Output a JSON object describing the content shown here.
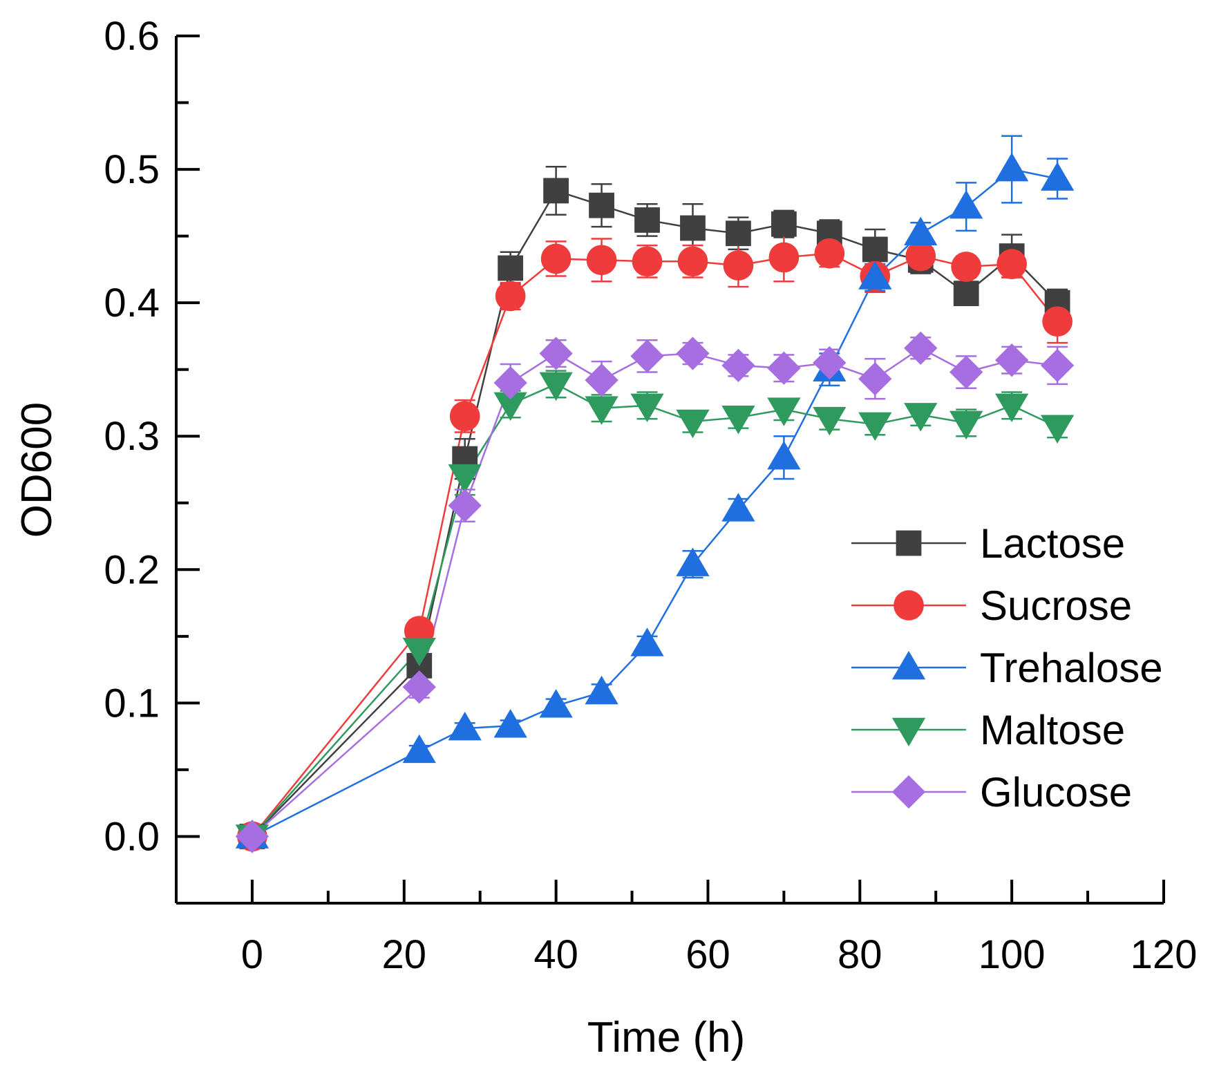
{
  "chart_data": {
    "type": "line",
    "title": "",
    "xlabel": "Time (h)",
    "ylabel": "OD600",
    "xlim": [
      -10,
      120
    ],
    "ylim": [
      -0.05,
      0.6
    ],
    "x_ticks": [
      0,
      20,
      40,
      60,
      80,
      100,
      120
    ],
    "x_tick_labels": [
      "0",
      "20",
      "40",
      "60",
      "80",
      "100",
      "120"
    ],
    "y_ticks": [
      0.0,
      0.1,
      0.2,
      0.3,
      0.4,
      0.5,
      0.6
    ],
    "y_tick_labels": [
      "0.0",
      "0.1",
      "0.2",
      "0.3",
      "0.4",
      "0.5",
      "0.6"
    ],
    "legend_position": "right",
    "grid": false,
    "x": [
      0,
      22,
      28,
      34,
      40,
      46,
      52,
      58,
      64,
      70,
      76,
      82,
      88,
      94,
      100,
      106
    ],
    "series": [
      {
        "name": "Lactose",
        "color": "#404040",
        "marker": "square",
        "values": [
          0.0,
          0.128,
          0.283,
          0.426,
          0.484,
          0.473,
          0.462,
          0.456,
          0.452,
          0.459,
          0.452,
          0.44,
          0.432,
          0.407,
          0.435,
          0.4
        ],
        "errors": [
          0.0,
          0.008,
          0.015,
          0.012,
          0.018,
          0.016,
          0.012,
          0.018,
          0.012,
          0.01,
          0.01,
          0.015,
          0.01,
          0.008,
          0.016,
          0.01
        ]
      },
      {
        "name": "Sucrose",
        "color": "#ef3b3b",
        "marker": "circle",
        "values": [
          0.0,
          0.154,
          0.315,
          0.405,
          0.433,
          0.432,
          0.431,
          0.431,
          0.428,
          0.434,
          0.437,
          0.42,
          0.435,
          0.427,
          0.429,
          0.386
        ],
        "errors": [
          0.0,
          0.008,
          0.012,
          0.01,
          0.013,
          0.016,
          0.012,
          0.012,
          0.016,
          0.018,
          0.01,
          0.012,
          0.01,
          0.008,
          0.01,
          0.016
        ]
      },
      {
        "name": "Trehalose",
        "color": "#1f6fe0",
        "marker": "triangle-up",
        "values": [
          0.0,
          0.064,
          0.081,
          0.083,
          0.098,
          0.108,
          0.144,
          0.204,
          0.245,
          0.284,
          0.35,
          0.419,
          0.452,
          0.472,
          0.5,
          0.493
        ],
        "errors": [
          0.0,
          0.004,
          0.004,
          0.004,
          0.005,
          0.006,
          0.006,
          0.01,
          0.008,
          0.016,
          0.012,
          0.01,
          0.008,
          0.018,
          0.025,
          0.015
        ]
      },
      {
        "name": "Maltose",
        "color": "#2e9a5e",
        "marker": "triangle-down",
        "values": [
          0.0,
          0.14,
          0.27,
          0.324,
          0.339,
          0.321,
          0.323,
          0.311,
          0.314,
          0.32,
          0.313,
          0.309,
          0.316,
          0.31,
          0.323,
          0.307
        ],
        "errors": [
          0.0,
          0.008,
          0.014,
          0.01,
          0.01,
          0.01,
          0.01,
          0.008,
          0.008,
          0.008,
          0.008,
          0.008,
          0.008,
          0.01,
          0.01,
          0.008
        ]
      },
      {
        "name": "Glucose",
        "color": "#a66ee0",
        "marker": "diamond",
        "values": [
          0.0,
          0.112,
          0.248,
          0.34,
          0.362,
          0.342,
          0.36,
          0.362,
          0.353,
          0.351,
          0.355,
          0.343,
          0.366,
          0.348,
          0.357,
          0.353
        ],
        "errors": [
          0.0,
          0.008,
          0.012,
          0.014,
          0.01,
          0.014,
          0.012,
          0.008,
          0.008,
          0.01,
          0.01,
          0.015,
          0.008,
          0.012,
          0.01,
          0.014
        ]
      }
    ]
  }
}
